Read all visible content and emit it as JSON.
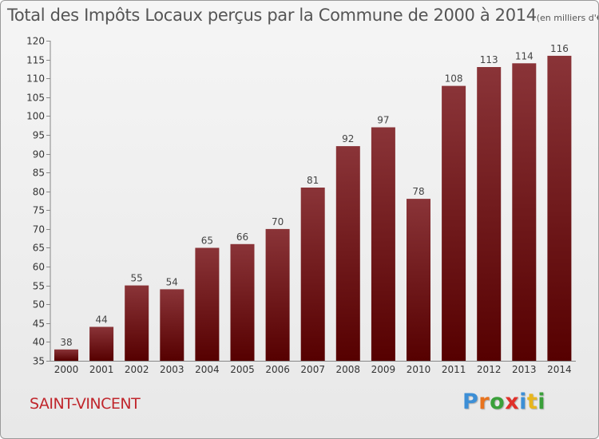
{
  "chart_data": {
    "type": "bar",
    "title": "Total des Impôts Locaux perçus par la Commune de 2000 à 2014",
    "unit_note": "(en milliers d'€)",
    "categories": [
      "2000",
      "2001",
      "2002",
      "2003",
      "2004",
      "2005",
      "2006",
      "2007",
      "2008",
      "2009",
      "2010",
      "2011",
      "2012",
      "2013",
      "2014"
    ],
    "values": [
      38,
      44,
      55,
      54,
      65,
      66,
      70,
      81,
      92,
      97,
      78,
      108,
      113,
      114,
      116
    ],
    "value_labels": [
      "38",
      "44",
      "55",
      "54",
      "65",
      "66",
      "70",
      "81",
      "92",
      "97",
      "78",
      "108",
      "113",
      "114",
      "116"
    ],
    "ylim": [
      35,
      120
    ],
    "yticks": [
      35,
      40,
      45,
      50,
      55,
      60,
      65,
      70,
      75,
      80,
      85,
      90,
      95,
      100,
      105,
      110,
      115,
      120
    ],
    "ytick_labels": [
      "35",
      "40",
      "45",
      "50",
      "55",
      "60",
      "65",
      "70",
      "75",
      "80",
      "85",
      "90",
      "95",
      "100",
      "105",
      "110",
      "115",
      "120"
    ],
    "xlabel": "",
    "ylabel": "",
    "grid": false,
    "bar_color_top": "#8a3438",
    "bar_color_bottom": "#560000"
  },
  "footer": {
    "commune": "SAINT-VINCENT",
    "brand_letters": [
      "P",
      "r",
      "o",
      "x",
      "i",
      "t",
      "i"
    ],
    "brand_colors": [
      "#3d8fd6",
      "#e8731e",
      "#3aa03a",
      "#e0302a",
      "#3d8fd6",
      "#e8b61e",
      "#3aa03a"
    ]
  }
}
